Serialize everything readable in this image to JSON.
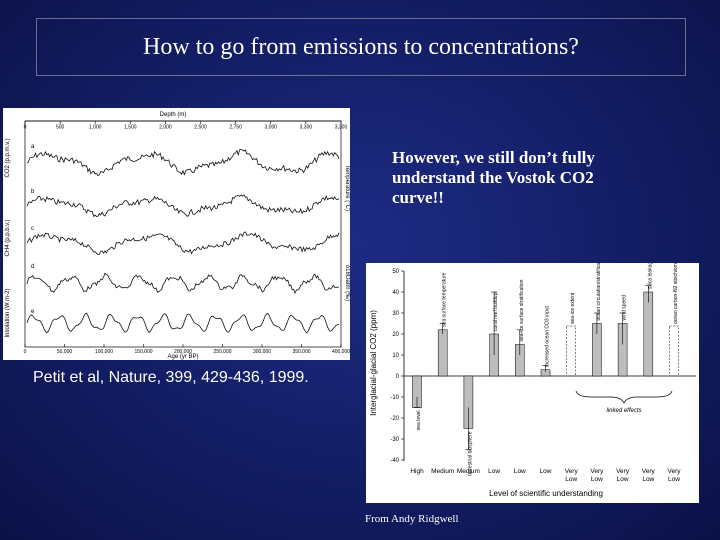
{
  "slide": {
    "title": "How to go from emissions to concentrations?",
    "note": "However, we still don’t fully understand the Vostok CO2 curve!!",
    "citation": "Petit et al, Nature, 399, 429-436, 1999.",
    "credit": "From Andy Ridgwell"
  },
  "left_figure": {
    "top_axis_title": "Depth (m)",
    "top_ticks": [
      "0",
      "500",
      "1,000",
      "1,500",
      "2,000",
      "2,500",
      "2,750",
      "3,000",
      "3,300",
      "3,300"
    ],
    "bottom_axis_title": "Age (yr BP)",
    "bottom_ticks": [
      "0",
      "50,000",
      "100,000",
      "150,000",
      "200,000",
      "250,000",
      "300,000",
      "350,000",
      "400,000"
    ],
    "left_axis_labels": [
      "CO2 (p.p.m.v.)",
      "CH4 (p.p.b.v.)",
      "Insolation (W m-2)"
    ],
    "right_axis_labels": [
      "Temperature (°C)",
      "δ18Oatm (‰)"
    ],
    "curve_letters": [
      "a",
      "b",
      "c",
      "d",
      "e"
    ]
  },
  "right_figure": {
    "y_label": "Interglacial-glacial CO2 (ppm)",
    "y_ticks": [
      "50",
      "40",
      "30",
      "20",
      "10",
      "0",
      "-10",
      "-20",
      "-30",
      "-40"
    ],
    "bar_labels": [
      "sea level",
      "sea surface temperature",
      "terrestrial biosphere",
      "coral reef buildup",
      "sea-ice surface stratification",
      "increased ocean CO3 input",
      "sea-ice extent",
      "ocean circulation/stratification",
      "wind speed",
      "silica leakage hypothesis",
      "ocean carbon-N2 stoichiometry"
    ],
    "bracket_label": "linked effects",
    "levels": [
      "High",
      "Medium",
      "Medium",
      "Low",
      "Low",
      "Low",
      "Very Low",
      "Very Low",
      "Very Low",
      "Very Low",
      "Very Low"
    ],
    "x_label": "Level of scientific understanding"
  }
}
